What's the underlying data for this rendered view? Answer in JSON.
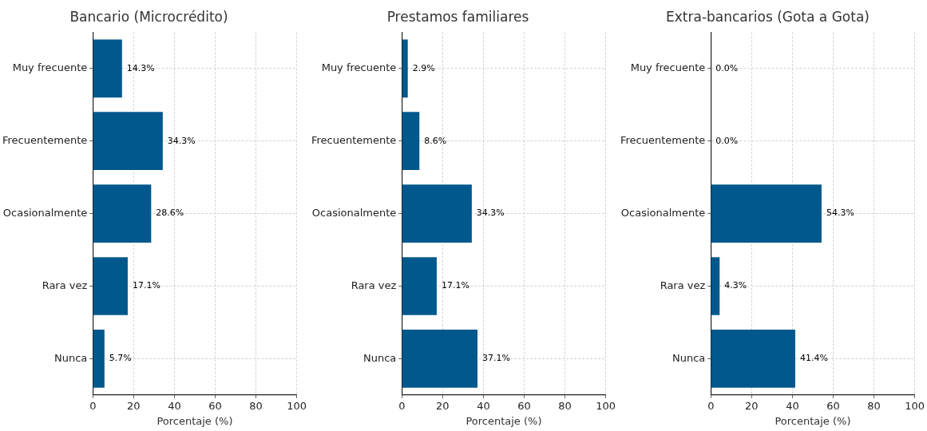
{
  "chart_data": [
    {
      "type": "bar",
      "orientation": "horizontal",
      "title": "Bancario (Microcrédito)",
      "xlabel": "Porcentaje (%)",
      "categories": [
        "Muy frecuente",
        "Frecuentemente",
        "Ocasionalmente",
        "Rara vez",
        "Nunca"
      ],
      "values": [
        14.3,
        34.3,
        28.6,
        17.1,
        5.7
      ],
      "value_labels": [
        "14.3%",
        "34.3%",
        "28.6%",
        "17.1%",
        "5.7%"
      ],
      "color": "#00588c",
      "xlim": [
        0,
        100
      ],
      "xticks": [
        0,
        20,
        40,
        60,
        80,
        100
      ],
      "grid": true
    },
    {
      "type": "bar",
      "orientation": "horizontal",
      "title": "Prestamos familiares",
      "xlabel": "Porcentaje (%)",
      "categories": [
        "Muy frecuente",
        "Frecuentemente",
        "Ocasionalmente",
        "Rara vez",
        "Nunca"
      ],
      "values": [
        2.9,
        8.6,
        34.3,
        17.1,
        37.1
      ],
      "value_labels": [
        "2.9%",
        "8.6%",
        "34.3%",
        "17.1%",
        "37.1%"
      ],
      "color": "#00588c",
      "xlim": [
        0,
        100
      ],
      "xticks": [
        0,
        20,
        40,
        60,
        80,
        100
      ],
      "grid": true
    },
    {
      "type": "bar",
      "orientation": "horizontal",
      "title": "Extra-bancarios (Gota a Gota)",
      "xlabel": "Porcentaje (%)",
      "categories": [
        "Muy frecuente",
        "Frecuentemente",
        "Ocasionalmente",
        "Rara vez",
        "Nunca"
      ],
      "values": [
        0.0,
        0.0,
        54.3,
        4.3,
        41.4
      ],
      "value_labels": [
        "0.0%",
        "0.0%",
        "54.3%",
        "4.3%",
        "41.4%"
      ],
      "color": "#00588c",
      "xlim": [
        0,
        100
      ],
      "xticks": [
        0,
        20,
        40,
        60,
        80,
        100
      ],
      "grid": true
    }
  ]
}
